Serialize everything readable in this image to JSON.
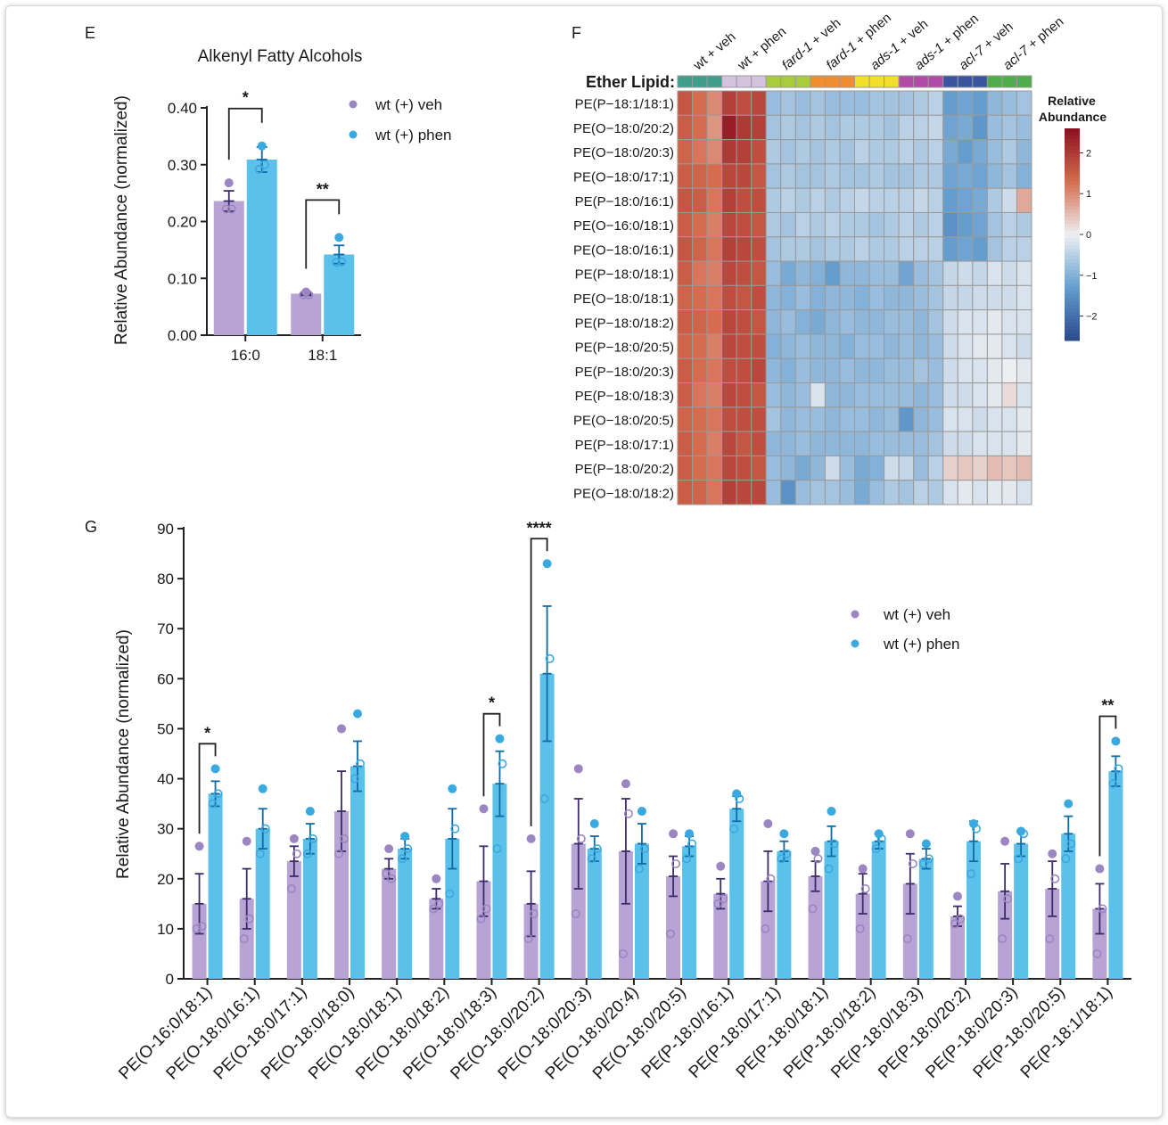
{
  "panels": {
    "E": {
      "letter": "E",
      "chart_data": {
        "type": "bar",
        "title": "Alkenyl Fatty Alcohols",
        "ylabel": "Relative Abundance (normalized)",
        "xlabel": "",
        "categories": [
          "16:0",
          "18:1"
        ],
        "ylim": [
          0,
          0.4
        ],
        "yticks": [
          "0.00",
          "0.10",
          "0.20",
          "0.30",
          "0.40"
        ],
        "series": [
          {
            "name": "wt (+) veh",
            "color": "#b7a3d4",
            "dot": "#9b86c2",
            "values": [
              0.236,
              0.073
            ],
            "errors": [
              0.018,
              0.003
            ],
            "points": [
              [
                0.268,
                0.222,
                0.222
              ],
              [
                0.076,
                0.071,
                0.071
              ]
            ]
          },
          {
            "name": "wt (+) phen",
            "color": "#5bc1ea",
            "dot": "#3aa9df",
            "values": [
              0.309,
              0.142
            ],
            "errors": [
              0.022,
              0.016
            ],
            "points": [
              [
                0.333,
                0.3,
                0.292
              ],
              [
                0.172,
                0.129,
                0.128
              ]
            ]
          }
        ],
        "significance": [
          {
            "category": 0,
            "label": "*"
          },
          {
            "category": 1,
            "label": "**"
          }
        ],
        "legend": "top-right"
      }
    },
    "F": {
      "letter": "F",
      "chart_data": {
        "type": "heatmap",
        "row_header": "Ether Lipid:",
        "colorbar_title": [
          "Relative",
          "Abundance"
        ],
        "colorbar_ticks": [
          "2",
          "1",
          "0",
          "−1",
          "−2"
        ],
        "colorbar_range": [
          -2.6,
          2.6
        ],
        "groups": [
          {
            "label": "wt + veh",
            "color": "#3e9d8b"
          },
          {
            "label": "wt + phen",
            "color": "#d4c2e0"
          },
          {
            "label": "fard-1 + veh",
            "color": "#a8cc3c"
          },
          {
            "label": "fard-1 + phen",
            "color": "#ef8d2f"
          },
          {
            "label": "ads-1 + veh",
            "color": "#f2df29"
          },
          {
            "label": "ads-1 + phen",
            "color": "#b24aa8"
          },
          {
            "label": "acl-7 + veh",
            "color": "#3a55a0"
          },
          {
            "label": "acl-7 + phen",
            "color": "#4fae4a"
          }
        ],
        "rows": [
          "PE(P−18:1/18:1)",
          "PE(O−18:0/20:2)",
          "PE(O−18:0/20:3)",
          "PE(O−18:0/17:1)",
          "PE(P−18:0/16:1)",
          "PE(O−16:0/18:1)",
          "PE(O−18:0/16:1)",
          "PE(P−18:0/18:1)",
          "PE(O−18:0/18:1)",
          "PE(P−18:0/18:2)",
          "PE(P−18:0/20:5)",
          "PE(P−18:0/20:3)",
          "PE(P−18:0/18:3)",
          "PE(O−18:0/20:5)",
          "PE(P−18:0/17:1)",
          "PE(P−18:0/20:2)",
          "PE(O−18:0/18:2)"
        ],
        "values": [
          [
            1.6,
            1.3,
            1.0,
            1.9,
            1.7,
            1.8,
            -0.8,
            -0.7,
            -0.8,
            -0.7,
            -0.8,
            -0.8,
            -0.8,
            -0.7,
            -0.7,
            -0.7,
            -0.6,
            -0.5,
            -1.3,
            -1.2,
            -1.3,
            -0.9,
            -0.8,
            -0.7
          ],
          [
            1.5,
            1.3,
            0.9,
            2.4,
            2.0,
            1.9,
            -0.7,
            -0.6,
            -0.7,
            -0.6,
            -0.7,
            -0.6,
            -0.6,
            -0.6,
            -0.7,
            -0.5,
            -0.5,
            -0.4,
            -1.2,
            -1.1,
            -1.4,
            -0.8,
            -0.7,
            -0.8
          ],
          [
            1.4,
            1.2,
            1.0,
            2.0,
            1.9,
            1.7,
            -0.6,
            -0.7,
            -0.6,
            -0.7,
            -0.6,
            -0.7,
            -0.5,
            -0.6,
            -0.6,
            -0.5,
            -0.6,
            -0.5,
            -1.1,
            -1.3,
            -1.1,
            -0.8,
            -0.6,
            -0.9
          ],
          [
            1.5,
            1.4,
            1.3,
            1.8,
            1.8,
            1.6,
            -0.7,
            -0.6,
            -0.7,
            -0.7,
            -0.6,
            -0.7,
            -0.7,
            -0.6,
            -0.7,
            -0.7,
            -0.6,
            -0.6,
            -1.2,
            -1.1,
            -1.2,
            -0.9,
            -0.7,
            -1.0
          ],
          [
            1.6,
            1.5,
            1.2,
            1.9,
            1.7,
            1.7,
            -0.6,
            -0.5,
            -0.6,
            -0.5,
            -0.6,
            -0.5,
            -0.4,
            -0.5,
            -0.5,
            -0.5,
            -0.4,
            -0.5,
            -1.3,
            -1.2,
            -1.1,
            -0.6,
            -0.3,
            0.7
          ],
          [
            1.5,
            1.3,
            1.1,
            1.8,
            1.7,
            1.6,
            -0.6,
            -0.7,
            -0.5,
            -0.6,
            -0.5,
            -0.6,
            -0.6,
            -0.7,
            -0.6,
            -0.5,
            -0.6,
            -0.5,
            -1.5,
            -1.3,
            -1.2,
            -0.7,
            -0.5,
            -0.6
          ],
          [
            1.6,
            1.4,
            1.2,
            1.9,
            1.8,
            1.7,
            -0.7,
            -0.6,
            -0.6,
            -0.7,
            -0.6,
            -0.6,
            -0.5,
            -0.6,
            -0.6,
            -0.5,
            -0.5,
            -0.5,
            -1.3,
            -1.2,
            -1.3,
            -0.7,
            -0.5,
            -0.5
          ],
          [
            1.5,
            1.2,
            1.1,
            1.8,
            1.7,
            1.6,
            -0.8,
            -1.1,
            -0.9,
            -1.0,
            -1.3,
            -0.9,
            -0.9,
            -0.8,
            -0.8,
            -1.2,
            -0.8,
            -0.7,
            -0.4,
            -0.3,
            -0.4,
            -0.2,
            -0.3,
            -0.2
          ],
          [
            1.4,
            1.3,
            1.2,
            1.7,
            1.6,
            1.7,
            -0.9,
            -1.0,
            -0.8,
            -1.0,
            -0.9,
            -0.9,
            -1.0,
            -0.8,
            -0.9,
            -0.9,
            -0.8,
            -0.7,
            -0.4,
            -0.4,
            -0.3,
            -0.3,
            -0.3,
            -0.2
          ],
          [
            1.5,
            1.4,
            1.3,
            1.8,
            1.7,
            1.6,
            -0.9,
            -0.8,
            -1.0,
            -1.1,
            -0.9,
            -0.8,
            -0.9,
            -0.9,
            -0.8,
            -0.8,
            -0.9,
            -0.7,
            -0.3,
            -0.2,
            -0.2,
            -0.1,
            -0.2,
            -0.2
          ],
          [
            1.4,
            1.3,
            1.1,
            1.8,
            1.7,
            1.7,
            -1.0,
            -0.9,
            -0.8,
            -0.9,
            -0.9,
            -1.0,
            -0.8,
            -0.8,
            -0.9,
            -0.8,
            -0.9,
            -0.8,
            -0.3,
            -0.2,
            -0.1,
            -0.1,
            -0.2,
            -0.3
          ],
          [
            1.5,
            1.3,
            1.2,
            1.7,
            1.7,
            1.8,
            -0.9,
            -1.0,
            -0.8,
            -0.9,
            -0.9,
            -0.8,
            -0.9,
            -0.9,
            -0.8,
            -0.8,
            -0.7,
            -0.8,
            -0.3,
            -0.2,
            -0.2,
            -0.1,
            0.0,
            -0.1
          ],
          [
            1.5,
            1.2,
            1.1,
            1.8,
            1.7,
            1.6,
            -0.8,
            -0.9,
            -0.8,
            -0.2,
            -0.9,
            -0.9,
            -0.8,
            -0.8,
            -0.8,
            -0.8,
            -0.9,
            -0.8,
            -0.3,
            -0.3,
            -0.2,
            -0.1,
            0.2,
            -0.2
          ],
          [
            1.4,
            1.3,
            1.2,
            1.7,
            1.7,
            1.7,
            -0.7,
            -0.9,
            -0.8,
            -0.8,
            -0.9,
            -0.8,
            -0.8,
            -0.9,
            -0.8,
            -1.4,
            -0.9,
            -0.8,
            -0.2,
            -0.2,
            -0.3,
            -0.2,
            -0.2,
            -0.1
          ],
          [
            1.5,
            1.3,
            1.1,
            1.8,
            1.6,
            1.7,
            -0.9,
            -0.9,
            -0.8,
            -0.9,
            -0.9,
            -0.9,
            -0.9,
            -0.8,
            -0.8,
            -0.8,
            -0.8,
            -0.7,
            -0.3,
            -0.3,
            -0.2,
            -0.2,
            -0.2,
            -0.1
          ],
          [
            1.5,
            1.3,
            1.2,
            1.8,
            1.7,
            1.6,
            -0.8,
            -0.9,
            -1.1,
            -0.9,
            -0.3,
            -0.8,
            -1.1,
            -1.0,
            -0.3,
            -0.4,
            -0.8,
            -0.5,
            0.3,
            0.4,
            0.3,
            0.5,
            0.4,
            0.5
          ],
          [
            1.5,
            1.4,
            1.2,
            1.9,
            1.8,
            1.8,
            -0.8,
            -1.5,
            -0.8,
            -0.7,
            -0.7,
            -0.8,
            -1.1,
            -0.8,
            -0.6,
            -0.7,
            -0.5,
            -0.6,
            -0.2,
            -0.1,
            -0.2,
            -0.1,
            -0.1,
            -0.2
          ]
        ]
      }
    },
    "G": {
      "letter": "G",
      "chart_data": {
        "type": "bar",
        "title": "",
        "ylabel": "Relative Abundance (normalized)",
        "xlabel": "",
        "ylim": [
          0,
          90
        ],
        "yticks": [
          "0",
          "10",
          "20",
          "30",
          "40",
          "50",
          "60",
          "70",
          "80",
          "90"
        ],
        "categories": [
          "PE(O-16:0/18:1)",
          "PE(O-18:0/16:1)",
          "PE(O-18:0/17:1)",
          "PE(O-18:0/18:0)",
          "PE(O-18:0/18:1)",
          "PE(O-18:0/18:2)",
          "PE(O-18:0/18:3)",
          "PE(O-18:0/20:2)",
          "PE(O-18:0/20:3)",
          "PE(O-18:0/20:4)",
          "PE(O-18:0/20:5)",
          "PE(P-18:0/16:1)",
          "PE(P-18:0/17:1)",
          "PE(P-18:0/18:1)",
          "PE(P-18:0/18:2)",
          "PE(P-18:0/18:3)",
          "PE(P-18:0/20:2)",
          "PE(P-18:0/20:3)",
          "PE(P-18:0/20:5)",
          "PE(P-18:1/18:1)"
        ],
        "series": [
          {
            "name": "wt (+) veh",
            "color": "#b7a3d4",
            "dot": "#9b86c2",
            "values": [
              15,
              16,
              23.5,
              33.5,
              22,
              16,
              19.5,
              15,
              27,
              25.5,
              20.5,
              17,
              19.5,
              20.5,
              17,
              19,
              12.5,
              17.5,
              18,
              14
            ],
            "errors": [
              6,
              6,
              3,
              8,
              2,
              2,
              7,
              6.5,
              9,
              10.5,
              4,
              3,
              6,
              3,
              4,
              6,
              2,
              5.5,
              5.5,
              5
            ],
            "points": [
              [
                26.5,
                10.5,
                10
              ],
              [
                27.5,
                12,
                8
              ],
              [
                28,
                25,
                18
              ],
              [
                50,
                28,
                25
              ],
              [
                26,
                20,
                21
              ],
              [
                20,
                15,
                14
              ],
              [
                34,
                14,
                12
              ],
              [
                28,
                13,
                8
              ],
              [
                42,
                28,
                13
              ],
              [
                39,
                33,
                5
              ],
              [
                29,
                23,
                9
              ],
              [
                22.5,
                16,
                15
              ],
              [
                31,
                20,
                10
              ],
              [
                25.5,
                24,
                14
              ],
              [
                22,
                18,
                10
              ],
              [
                29,
                23,
                8
              ],
              [
                16.5,
                12,
                11
              ],
              [
                27.5,
                16,
                8
              ],
              [
                25,
                20,
                8
              ],
              [
                22,
                14,
                5
              ]
            ]
          },
          {
            "name": "wt (+) phen",
            "color": "#5bc1ea",
            "dot": "#3aa9df",
            "values": [
              37,
              30,
              28,
              42.5,
              26,
              28,
              39,
              61,
              26,
              27,
              26.5,
              34,
              25.5,
              27.5,
              27.5,
              24,
              27.5,
              27,
              29,
              41.5
            ],
            "errors": [
              2.5,
              4,
              3,
              5,
              2,
              6,
              6.5,
              13.5,
              2.5,
              4,
              2,
              2.5,
              2,
              3,
              1.5,
              2,
              4,
              2.5,
              3.5,
              3
            ],
            "points": [
              [
                42,
                37,
                35
              ],
              [
                38,
                30,
                25
              ],
              [
                33.5,
                28,
                25
              ],
              [
                53,
                43,
                40
              ],
              [
                28.5,
                26,
                24
              ],
              [
                38,
                30,
                17
              ],
              [
                48,
                43,
                26
              ],
              [
                83,
                64,
                36
              ],
              [
                31,
                26,
                24
              ],
              [
                33.5,
                26,
                22
              ],
              [
                29,
                27,
                24
              ],
              [
                37,
                36,
                30
              ],
              [
                29,
                25,
                24
              ],
              [
                33.5,
                27,
                22
              ],
              [
                29,
                28,
                26
              ],
              [
                27,
                24,
                23
              ],
              [
                31,
                30,
                21
              ],
              [
                29.5,
                29,
                24
              ],
              [
                35,
                27,
                24
              ],
              [
                47.5,
                42,
                39
              ]
            ]
          }
        ],
        "significance": [
          {
            "category": 0,
            "label": "*"
          },
          {
            "category": 6,
            "label": "*"
          },
          {
            "category": 7,
            "label": "****"
          },
          {
            "category": 19,
            "label": "**"
          }
        ],
        "legend": "top-right"
      }
    }
  }
}
